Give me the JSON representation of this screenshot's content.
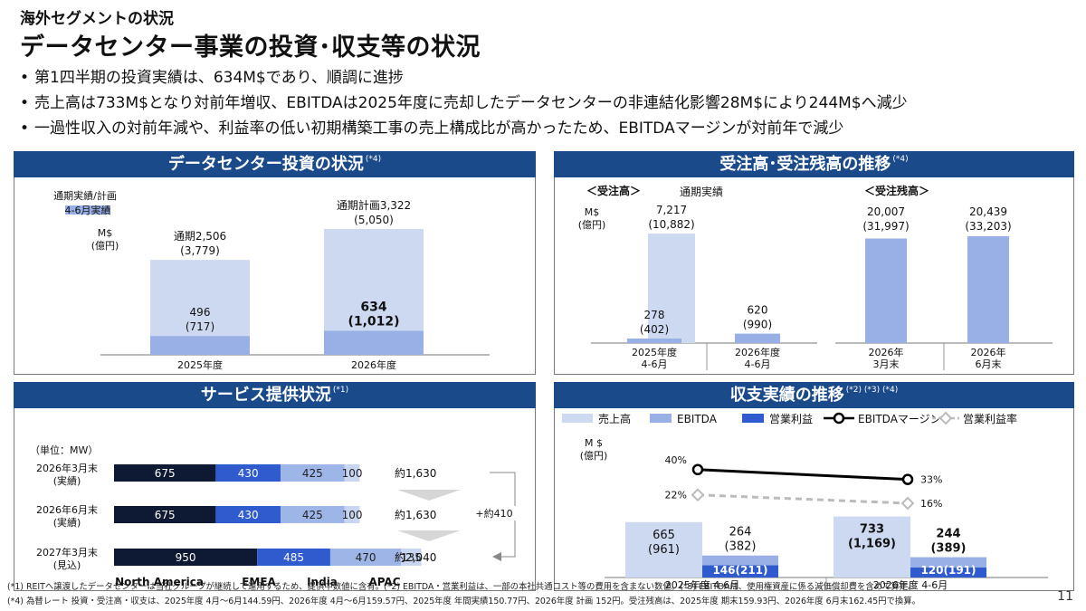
{
  "header": {
    "subtitle": "海外セグメントの状況",
    "title": "データセンター事業の投資･収支等の状況"
  },
  "bullets": [
    "第1四半期の投資実績は、634M$であり、順調に進捗",
    "売上高は733M$となり対前年増収、EBITDAは2025年度に売却したデータセンターの非連結化影響28M$により244M$へ減少",
    "一過性収入の対前年減や、利益率の低い初期構築工事の売上構成比が高かったため、EBITDAマージンが対前年で減少"
  ],
  "panels": {
    "investment": {
      "title": "データセンター投資の状況",
      "note": "(*4)",
      "legend_plan": "通期実績/計画",
      "legend_q1": "4-6月実績",
      "unit_line1": "M$",
      "unit_line2": "(億円)",
      "colors": {
        "full": "#ccd9f1",
        "q1": "#98b0e6"
      }
    },
    "orders": {
      "title": "受注高･受注残高の推移",
      "note": "(*4)",
      "label_orders": "＜受注高＞",
      "label_fullyear": "通期実績",
      "label_backlog": "＜受注残高＞",
      "unit_line1": "M$",
      "unit_line2": "(億円)"
    },
    "service": {
      "title": "サービス提供状況",
      "note": "(*1)",
      "unit": "（単位：MW）",
      "increase_label": "+約410",
      "colors": {
        "na": "#0e1a33",
        "emea": "#2f5bcf",
        "india": "#9eb5e8",
        "apac": "#c9d6f2"
      }
    },
    "pl": {
      "title": "収支実績の推移",
      "note": "(*2) (*3) (*4)",
      "unit_line1": "M $",
      "unit_line2": "(億円)",
      "legend": [
        "売上高",
        "EBITDA",
        "営業利益",
        "EBITDAマージン",
        "営業利益率"
      ],
      "colors": {
        "sales": "#ccd9f1",
        "ebitda": "#98b0e6",
        "op": "#2f5bcf"
      }
    }
  },
  "chart_data": [
    {
      "type": "bar",
      "title": "データセンター投資の状況",
      "categories": [
        "2025年度",
        "2026年度"
      ],
      "series": [
        {
          "name": "通期実績/計画",
          "values": [
            2506,
            3322
          ],
          "labels": [
            "通期2,506",
            "通期計画3,322"
          ],
          "sublabels": [
            "(3,779)",
            "(5,050)"
          ]
        },
        {
          "name": "4-6月実績",
          "values": [
            496,
            634
          ],
          "labels": [
            "496",
            "634"
          ],
          "sublabels": [
            "(717)",
            "(1,012)"
          ]
        }
      ],
      "ylim": [
        0,
        3322
      ]
    },
    {
      "type": "bar",
      "title": "受注高･受注残高の推移",
      "groups": [
        {
          "name": "＜受注高＞",
          "categories": [
            "2025年度 4-6月",
            "2026年度 4-6月"
          ],
          "fullyear": {
            "value": 7217,
            "label": "7,217",
            "sublabel": "(10,882)"
          },
          "values": [
            278,
            620
          ],
          "labels": [
            "278",
            "620"
          ],
          "sublabels": [
            "(402)",
            "(990)"
          ]
        },
        {
          "name": "＜受注残高＞",
          "categories": [
            "2026年 3月末",
            "2026年 6月末"
          ],
          "values": [
            20007,
            20439
          ],
          "labels": [
            "20,007",
            "20,439"
          ],
          "sublabels": [
            "(31,997)",
            "(33,203)"
          ]
        }
      ]
    },
    {
      "type": "bar",
      "title": "サービス提供状況",
      "orientation": "horizontal-stacked",
      "categories": [
        "2026年3月末 (実績)",
        "2026年6月末 (実績)",
        "2027年3月末 (見込)"
      ],
      "category_lines": [
        [
          "2026年3月末",
          "(実績)"
        ],
        [
          "2026年6月末",
          "(実績)"
        ],
        [
          "2027年3月末",
          "(見込)"
        ]
      ],
      "series": [
        {
          "name": "North America",
          "values": [
            675,
            675,
            950
          ]
        },
        {
          "name": "EMEA",
          "values": [
            430,
            430,
            485
          ]
        },
        {
          "name": "India",
          "values": [
            425,
            425,
            470
          ]
        },
        {
          "name": "APAC",
          "values": [
            100,
            100,
            135
          ]
        }
      ],
      "totals": [
        "約1,630",
        "約1,630",
        "約2,040"
      ]
    },
    {
      "type": "bar",
      "title": "収支実績の推移",
      "categories": [
        "2025年度 4-6月",
        "2026年度 4-6月"
      ],
      "series": [
        {
          "name": "売上高",
          "values": [
            665,
            733
          ],
          "sublabels": [
            "(961)",
            "(1,169)"
          ]
        },
        {
          "name": "EBITDA",
          "values": [
            264,
            244
          ],
          "sublabels": [
            "(382)",
            "(389)"
          ]
        },
        {
          "name": "営業利益",
          "values": [
            146,
            120
          ],
          "labels": [
            "146(211)",
            "120(191)"
          ]
        }
      ],
      "lines": [
        {
          "name": "EBITDAマージン",
          "values": [
            40,
            33
          ],
          "labels": [
            "40%",
            "33%"
          ]
        },
        {
          "name": "営業利益率",
          "values": [
            22,
            16
          ],
          "labels": [
            "22%",
            "16%"
          ]
        }
      ]
    }
  ],
  "footnotes": [
    "(*1) REITへ譲渡したデータセンターは当社グループが継続して運用するため、提供中数値に含有。(*2) EBITDA・営業利益は、一部の本社共通コスト等の費用を含まない数値。(*3) EBITDAは、使用権資産に係る減価償却費を含めて算定。",
    "(*4) 為替レート 投資・受注高・収支は、2025年度 4月～6月144.59円、2026年度 4月～6月159.57円、2025年度 年間実績150.77円、2026年度 計画 152円。受注残高は、2025年度 期末159.93円、2026年度 6月末162.45円で換算。"
  ],
  "page_number": "11"
}
